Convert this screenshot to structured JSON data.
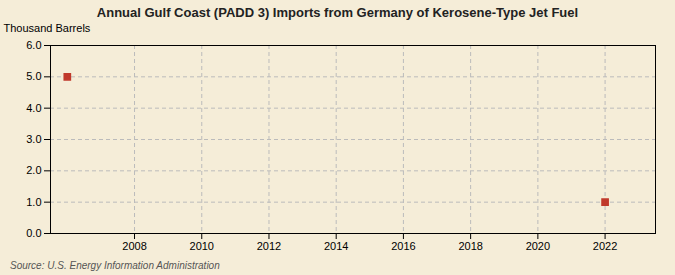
{
  "chart_data": {
    "type": "scatter",
    "title": "Annual Gulf Coast (PADD 3) Imports from Germany of Kerosene-Type Jet Fuel",
    "ylabel": "Thousand Barrels",
    "source": "Source: U.S. Energy Information Administration",
    "x": [
      2006,
      2022
    ],
    "values": [
      5.0,
      1.0
    ],
    "color": "#c0392b",
    "marker": "square",
    "xlim": [
      2005.5,
      2023.5
    ],
    "xticks": [
      2008,
      2010,
      2012,
      2014,
      2016,
      2018,
      2020,
      2022
    ],
    "ylim": [
      0.0,
      6.0
    ],
    "yticks": [
      {
        "value": 0.0,
        "label": "0.0"
      },
      {
        "value": 1.0,
        "label": "1.0"
      },
      {
        "value": 2.0,
        "label": "2.0"
      },
      {
        "value": 3.0,
        "label": "3.0"
      },
      {
        "value": 4.0,
        "label": "4.0"
      },
      {
        "value": 5.0,
        "label": "5.0"
      },
      {
        "value": 6.0,
        "label": "6.0"
      }
    ],
    "grid": true
  }
}
